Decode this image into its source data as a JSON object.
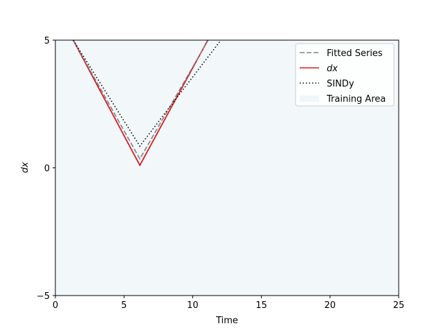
{
  "chart_data": {
    "type": "line",
    "title": "",
    "xlabel": "Time",
    "ylabel": "dx",
    "xlim": [
      0,
      25
    ],
    "ylim": [
      -5,
      5
    ],
    "xticks": [
      0,
      5,
      10,
      15,
      20,
      25
    ],
    "yticks": [
      -5,
      0,
      5
    ],
    "grid": false,
    "legend_position": "top-right",
    "shaded_region": {
      "name": "Training Area",
      "x": [
        0,
        25
      ],
      "color": "#e6f0f5"
    },
    "series": [
      {
        "name": "Fitted Series",
        "style": "dashed",
        "color": "#808080",
        "x": [
          1.3,
          6.15,
          11.5
        ],
        "y": [
          5,
          0.35,
          5.35
        ]
      },
      {
        "name": "dx",
        "style": "solid",
        "color": "#e0191b",
        "x": [
          1.3,
          6.15,
          11.1
        ],
        "y": [
          5,
          0.1,
          5
        ]
      },
      {
        "name": "SINDy",
        "style": "dotted",
        "color": "#000000",
        "x": [
          1.3,
          6.15,
          12.05
        ],
        "y": [
          5,
          0.85,
          5
        ]
      }
    ]
  }
}
